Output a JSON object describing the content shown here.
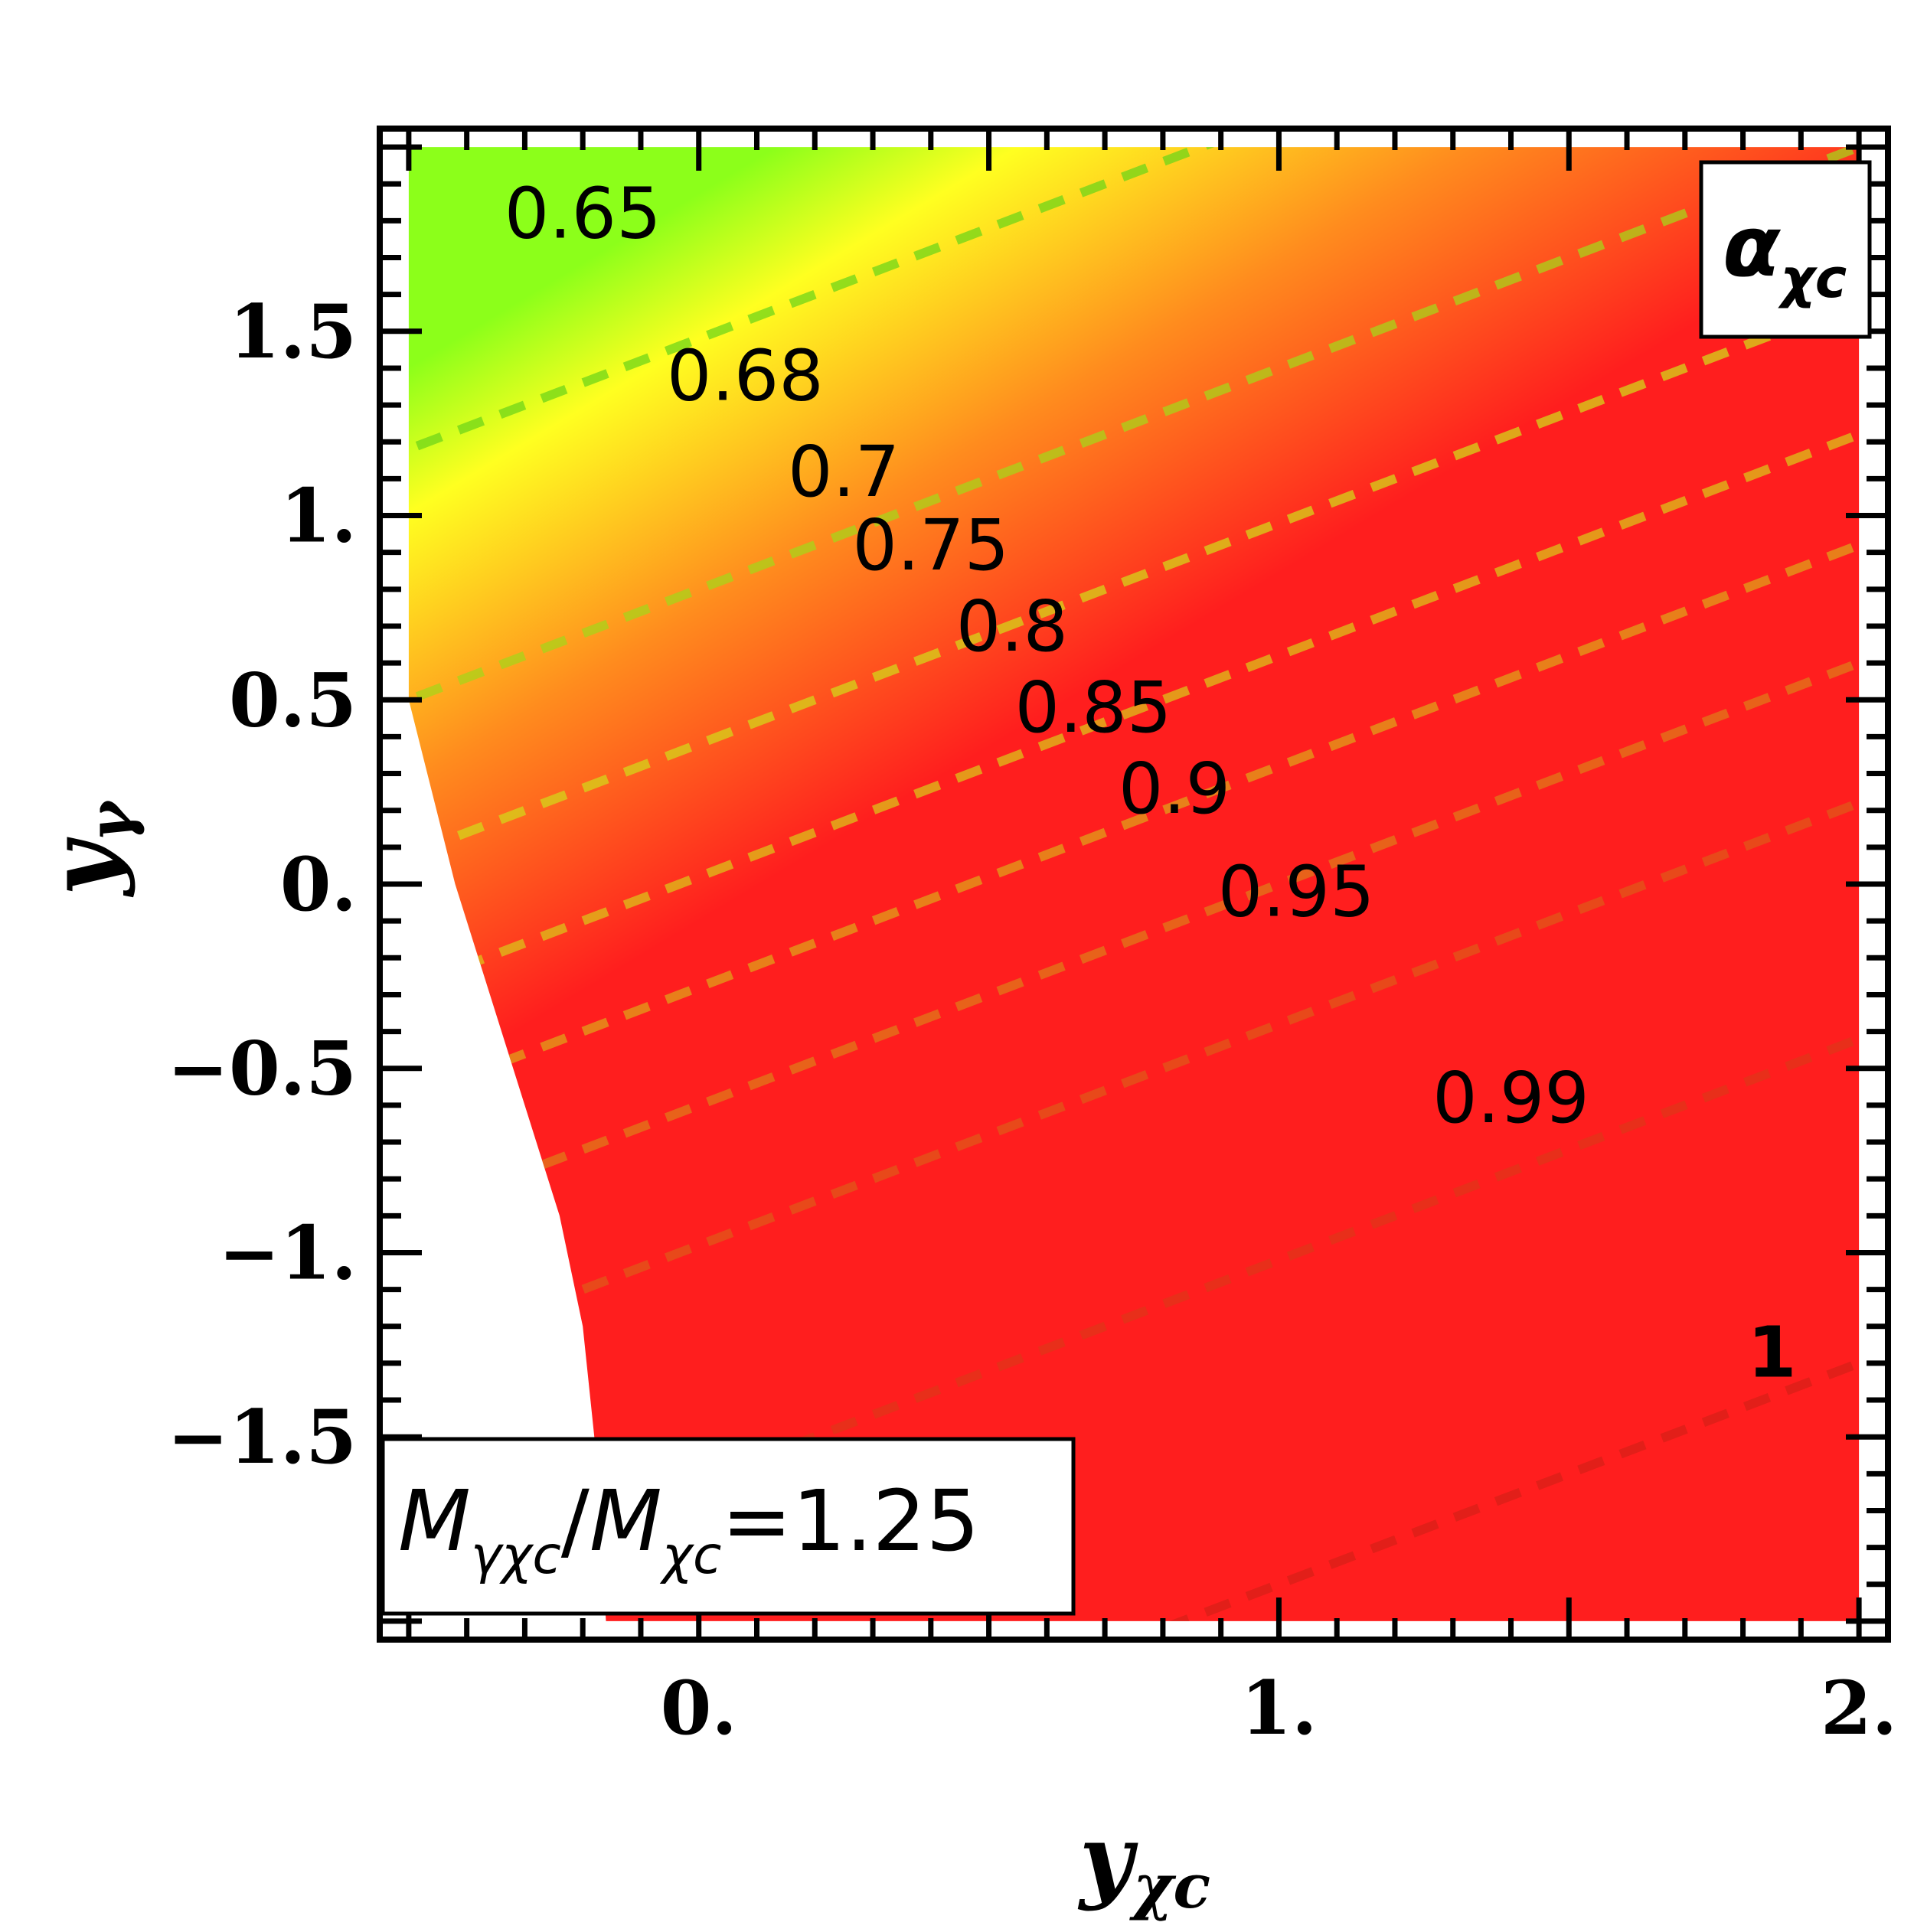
{
  "chart_data": {
    "type": "heatmap",
    "title": "",
    "xlabel": "y",
    "xlabel_sub": "χc",
    "ylabel": "y",
    "ylabel_sub": "γ",
    "xlim": [
      -0.55,
      2.05
    ],
    "ylim": [
      -2.05,
      2.05
    ],
    "plot_region": {
      "x": [
        -0.5,
        2.0
      ],
      "y": [
        -2.0,
        2.0
      ]
    },
    "x_ticks": [
      {
        "value": 0.0,
        "label": "0."
      },
      {
        "value": 1.0,
        "label": "1."
      },
      {
        "value": 2.0,
        "label": "2."
      }
    ],
    "y_ticks": [
      {
        "value": 1.5,
        "label": "1.5"
      },
      {
        "value": 1.0,
        "label": "1."
      },
      {
        "value": 0.5,
        "label": "0.5"
      },
      {
        "value": 0.0,
        "label": "0."
      },
      {
        "value": -0.5,
        "label": "−0.5"
      },
      {
        "value": -1.0,
        "label": "−1."
      },
      {
        "value": -1.5,
        "label": "−1.5"
      }
    ],
    "colorscale": [
      {
        "value": 0.65,
        "color": "#8cff1a"
      },
      {
        "value": 0.72,
        "color": "#ffff20"
      },
      {
        "value": 0.85,
        "color": "#ff8c1e"
      },
      {
        "value": 1.0,
        "color": "#ff1e1e"
      }
    ],
    "excluded_boundary": [
      [
        -0.5,
        0.5
      ],
      [
        -0.42,
        0.0
      ],
      [
        -0.3,
        -0.6
      ],
      [
        -0.24,
        -0.9
      ],
      [
        -0.2,
        -1.2
      ],
      [
        -0.18,
        -1.5
      ],
      [
        -0.16,
        -2.0
      ]
    ],
    "contours": [
      {
        "level": 0.65,
        "label": "0.65",
        "label_at": [
          -0.2,
          1.82
        ]
      },
      {
        "level": 0.68,
        "label": "0.68",
        "label_at": [
          0.08,
          1.38
        ]
      },
      {
        "level": 0.7,
        "label": "0.7",
        "label_at": [
          0.25,
          1.12
        ]
      },
      {
        "level": 0.75,
        "label": "0.75",
        "label_at": [
          0.4,
          0.92
        ]
      },
      {
        "level": 0.8,
        "label": "0.8",
        "label_at": [
          0.54,
          0.7
        ]
      },
      {
        "level": 0.85,
        "label": "0.85",
        "label_at": [
          0.68,
          0.48
        ]
      },
      {
        "level": 0.9,
        "label": "0.9",
        "label_at": [
          0.82,
          0.26
        ]
      },
      {
        "level": 0.95,
        "label": "0.95",
        "label_at": [
          1.03,
          -0.02
        ]
      },
      {
        "level": 0.99,
        "label": "0.99",
        "label_at": [
          1.4,
          -0.58
        ]
      },
      {
        "level": 1,
        "label": "1",
        "label_at": [
          1.85,
          -1.27
        ]
      }
    ],
    "contour_line_offsets": [
      1.48,
      0.8,
      0.38,
      0.02,
      -0.28,
      -0.6,
      -0.98,
      -1.62,
      -2.5
    ],
    "contour_slope": 0.6,
    "annotation_top_right": {
      "main": "α",
      "sub": "χc"
    },
    "annotation_bottom_left": {
      "main1": "M",
      "sub1": "γχc",
      "sep": "/",
      "main2": "M",
      "sub2": "χc",
      "value": "=1.25"
    }
  }
}
